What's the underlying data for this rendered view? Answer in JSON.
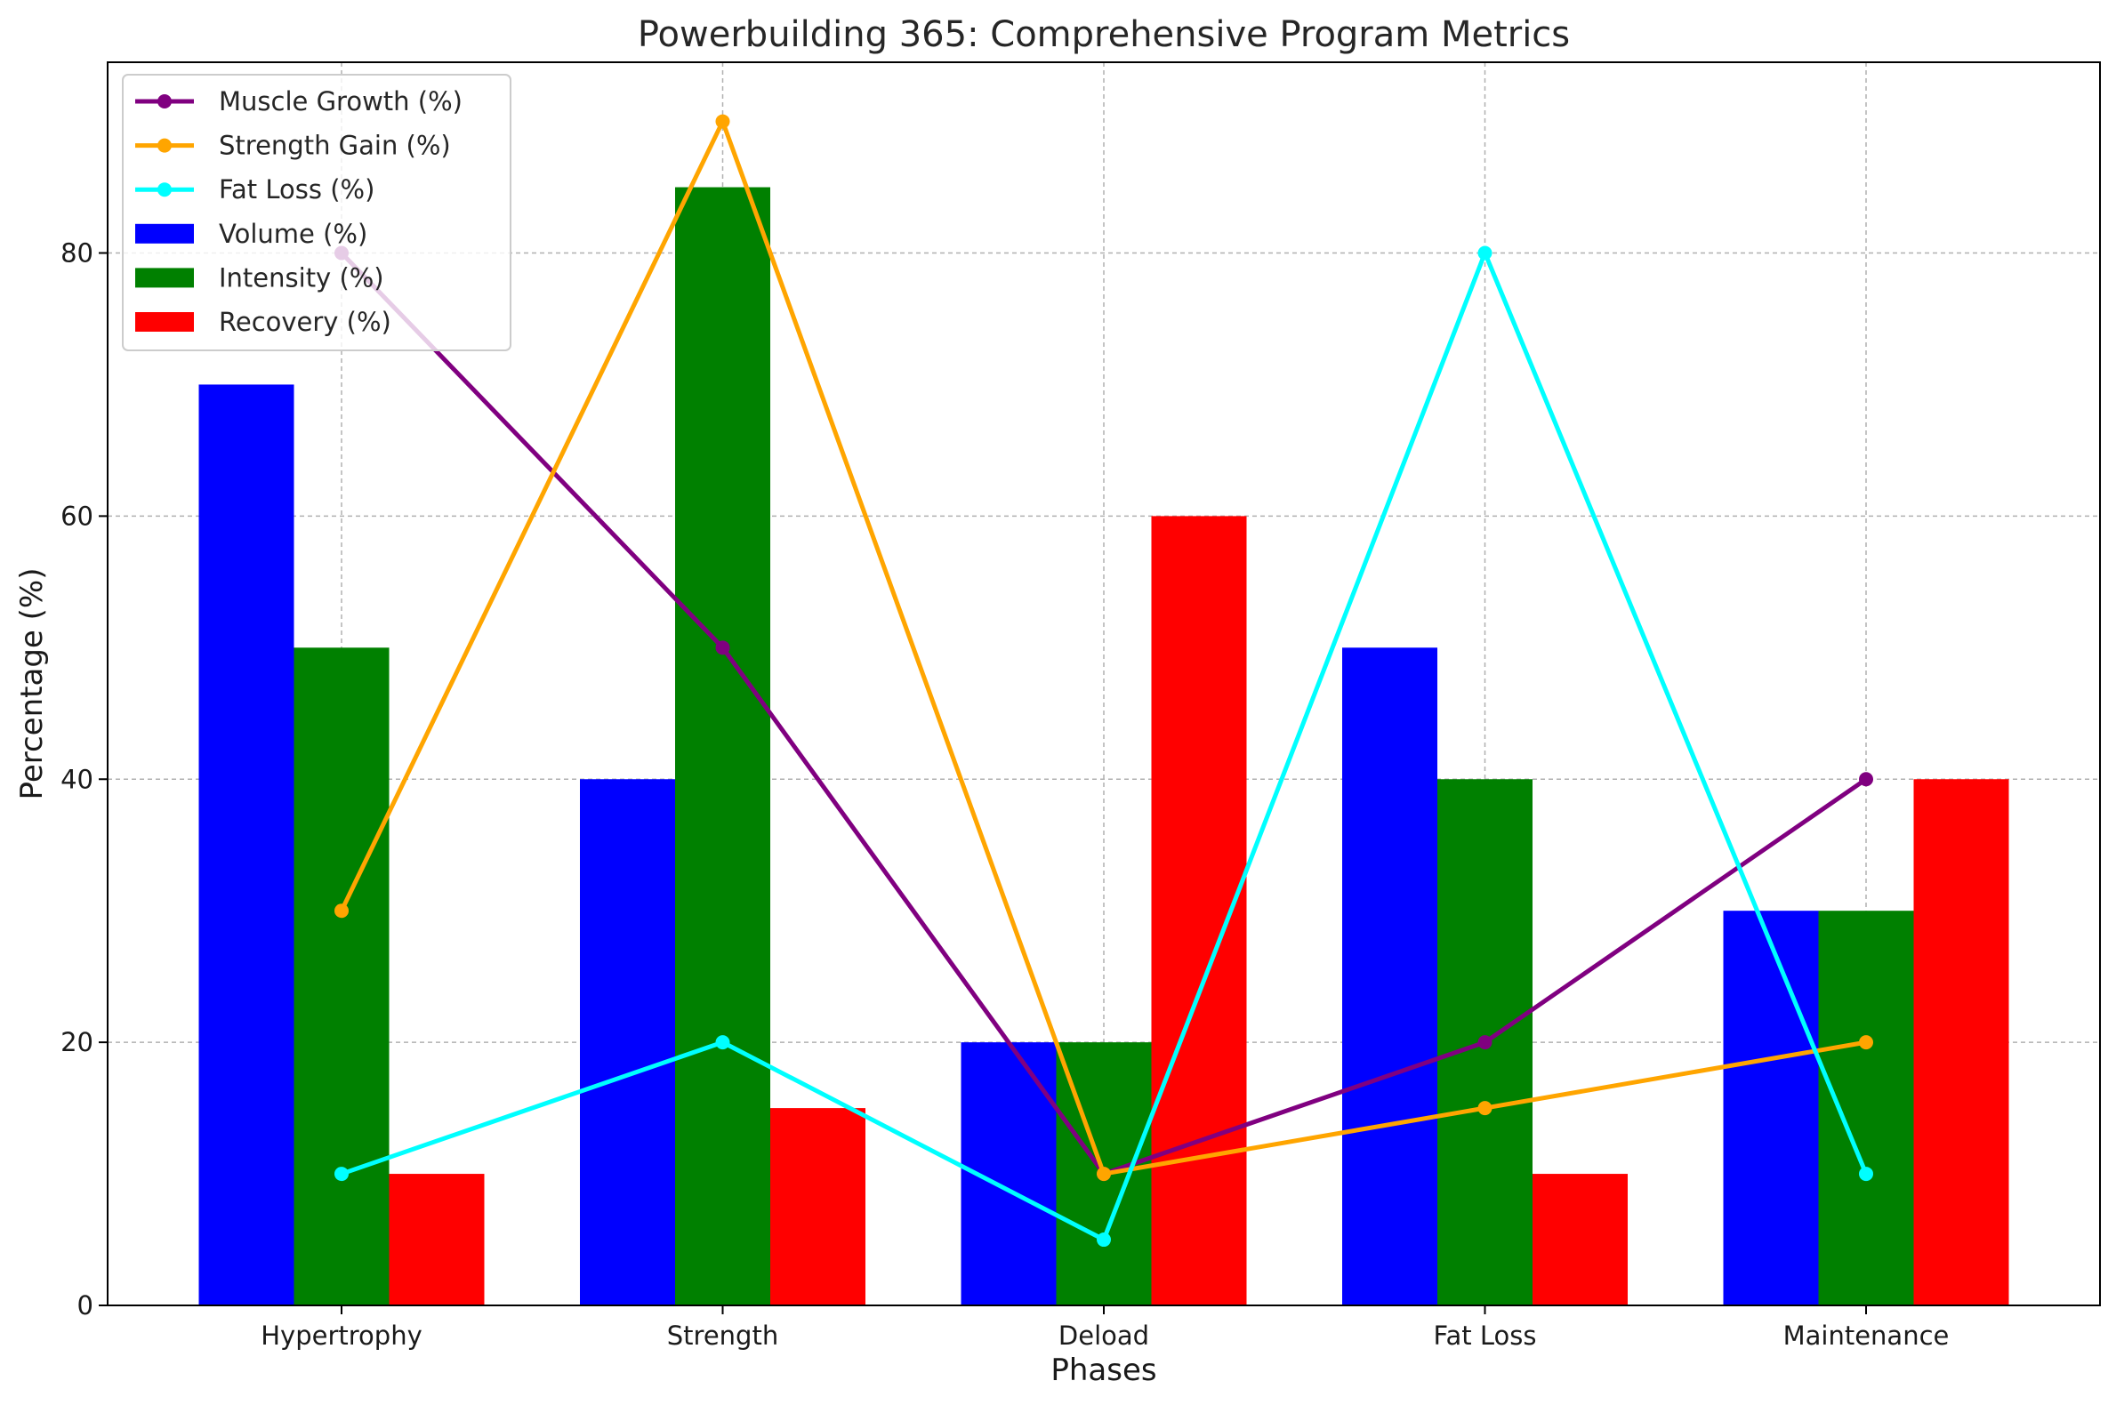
{
  "chart_data": {
    "type": "bar",
    "title": "Powerbuilding 365: Comprehensive Program Metrics",
    "xlabel": "Phases",
    "ylabel": "Percentage (%)",
    "categories": [
      "Hypertrophy",
      "Strength",
      "Deload",
      "Fat Loss",
      "Maintenance"
    ],
    "ylim": [
      0,
      94.5
    ],
    "yticks": [
      0,
      20,
      40,
      60,
      80
    ],
    "grid": true,
    "legend_position": "top-left",
    "bar_series": [
      {
        "name": "Volume (%)",
        "color": "#0000ff",
        "values": [
          70,
          40,
          20,
          50,
          30
        ]
      },
      {
        "name": "Intensity (%)",
        "color": "#008000",
        "values": [
          50,
          85,
          20,
          40,
          30
        ]
      },
      {
        "name": "Recovery (%)",
        "color": "#ff0000",
        "values": [
          10,
          15,
          60,
          10,
          40
        ]
      }
    ],
    "line_series": [
      {
        "name": "Muscle Growth (%)",
        "color": "#800080",
        "values": [
          80,
          50,
          10,
          20,
          40
        ]
      },
      {
        "name": "Strength Gain (%)",
        "color": "#ffa500",
        "values": [
          30,
          90,
          10,
          15,
          20
        ]
      },
      {
        "name": "Fat Loss (%)",
        "color": "#00ffff",
        "values": [
          10,
          20,
          5,
          80,
          10
        ]
      }
    ]
  }
}
